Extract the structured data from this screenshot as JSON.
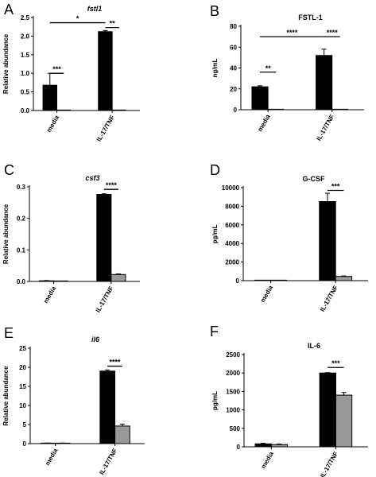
{
  "chart_data": [
    {
      "panel_label": "A",
      "type": "bar",
      "title": "fstl1",
      "title_italic": true,
      "ylabel": "Relative abundance",
      "ylim": [
        0,
        2.5
      ],
      "yticks": [
        "0.0",
        "0.5",
        "1.0",
        "1.5",
        "2.0",
        "2.5"
      ],
      "ytick_values": [
        0,
        0.5,
        1.0,
        1.5,
        2.0,
        2.5
      ],
      "categories": [
        "media",
        "IL-17/TNF"
      ],
      "series": [
        {
          "values": [
            0.68,
            2.12
          ],
          "errors": [
            0.32,
            0.03
          ],
          "color": "#000000"
        },
        {
          "values": [
            0.0,
            0.0
          ],
          "errors": [
            0,
            0
          ],
          "color": "#999999"
        }
      ],
      "annotations": [
        {
          "text": "***",
          "from": [
            0,
            0
          ],
          "to": [
            0,
            1
          ],
          "y": 1.0
        },
        {
          "text": "*",
          "from": [
            0,
            0
          ],
          "to": [
            1,
            0
          ],
          "y": 2.36
        },
        {
          "text": "**",
          "from": [
            1,
            0
          ],
          "to": [
            1,
            1
          ],
          "y": 2.23
        }
      ]
    },
    {
      "panel_label": "B",
      "type": "bar",
      "title": "FSTL-1",
      "title_italic": false,
      "ylabel": "ng/mL",
      "ylim": [
        0,
        80
      ],
      "yticks": [
        "0",
        "20",
        "40",
        "60",
        "80"
      ],
      "ytick_values": [
        0,
        20,
        40,
        60,
        80
      ],
      "categories": [
        "media",
        "IL-17/TNF"
      ],
      "series": [
        {
          "values": [
            22,
            52
          ],
          "errors": [
            1,
            6
          ],
          "color": "#000000"
        },
        {
          "values": [
            0,
            0
          ],
          "errors": [
            0,
            0
          ],
          "color": "#999999"
        }
      ],
      "annotations": [
        {
          "text": "**",
          "from": [
            0,
            0
          ],
          "to": [
            0,
            1
          ],
          "y": 36
        },
        {
          "text": "****",
          "from": [
            0,
            0
          ],
          "to": [
            1,
            0
          ],
          "y": 70
        },
        {
          "text": "****",
          "from": [
            1,
            0
          ],
          "to": [
            1,
            1
          ],
          "y": 70
        }
      ]
    },
    {
      "panel_label": "C",
      "type": "bar",
      "title": "csf3",
      "title_italic": true,
      "ylabel": "Relative abundance",
      "ylim": [
        0,
        0.3
      ],
      "yticks": [
        "0.0",
        "0.1",
        "0.2",
        "0.3"
      ],
      "ytick_values": [
        0,
        0.1,
        0.2,
        0.3
      ],
      "categories": [
        "media",
        "IL-17/TNF"
      ],
      "series": [
        {
          "values": [
            0.002,
            0.276
          ],
          "errors": [
            0.001,
            0.002
          ],
          "color": "#000000"
        },
        {
          "values": [
            0.0,
            0.022
          ],
          "errors": [
            0,
            0.002
          ],
          "color": "#999999"
        }
      ],
      "annotations": [
        {
          "text": "****",
          "from": [
            1,
            0
          ],
          "to": [
            1,
            1
          ],
          "y": 0.292
        }
      ]
    },
    {
      "panel_label": "D",
      "type": "bar",
      "title": "G-CSF",
      "title_italic": false,
      "ylabel": "pg/mL",
      "ylim": [
        0,
        10000
      ],
      "yticks": [
        "0",
        "2000",
        "4000",
        "6000",
        "8000",
        "10000"
      ],
      "ytick_values": [
        0,
        2000,
        4000,
        6000,
        8000,
        10000
      ],
      "categories": [
        "media",
        "IL-17/TNF"
      ],
      "series": [
        {
          "values": [
            30,
            8500
          ],
          "errors": [
            10,
            900
          ],
          "color": "#000000"
        },
        {
          "values": [
            20,
            450
          ],
          "errors": [
            10,
            60
          ],
          "color": "#999999"
        }
      ],
      "annotations": [
        {
          "text": "***",
          "from": [
            1,
            0
          ],
          "to": [
            1,
            1
          ],
          "y": 9700
        }
      ]
    },
    {
      "panel_label": "E",
      "type": "bar",
      "title": "il6",
      "title_italic": true,
      "ylabel": "Relative abundance",
      "ylim": [
        0,
        25
      ],
      "yticks": [
        "0",
        "5",
        "10",
        "15",
        "20",
        "25"
      ],
      "ytick_values": [
        0,
        5,
        10,
        15,
        20,
        25
      ],
      "categories": [
        "media",
        "IL-17/TNF"
      ],
      "series": [
        {
          "values": [
            0.1,
            19.0
          ],
          "errors": [
            0.05,
            0.3
          ],
          "color": "#000000"
        },
        {
          "values": [
            0.1,
            4.6
          ],
          "errors": [
            0.05,
            0.5
          ],
          "color": "#999999"
        }
      ],
      "annotations": [
        {
          "text": "****",
          "from": [
            1,
            0
          ],
          "to": [
            1,
            1
          ],
          "y": 20.3
        }
      ]
    },
    {
      "panel_label": "F",
      "type": "bar",
      "title": "IL-6",
      "title_italic": false,
      "ylabel": "pg/mL",
      "ylim": [
        0,
        2500
      ],
      "yticks": [
        "0",
        "500",
        "1000",
        "1500",
        "2000",
        "2500"
      ],
      "ytick_values": [
        0,
        500,
        1000,
        1500,
        2000,
        2500
      ],
      "categories": [
        "media",
        "IL-17/TNF"
      ],
      "series": [
        {
          "values": [
            80,
            2000
          ],
          "errors": [
            15,
            10
          ],
          "color": "#000000"
        },
        {
          "values": [
            60,
            1400
          ],
          "errors": [
            15,
            70
          ],
          "color": "#999999"
        }
      ],
      "annotations": [
        {
          "text": "***",
          "from": [
            1,
            0
          ],
          "to": [
            1,
            1
          ],
          "y": 2150
        }
      ]
    }
  ]
}
